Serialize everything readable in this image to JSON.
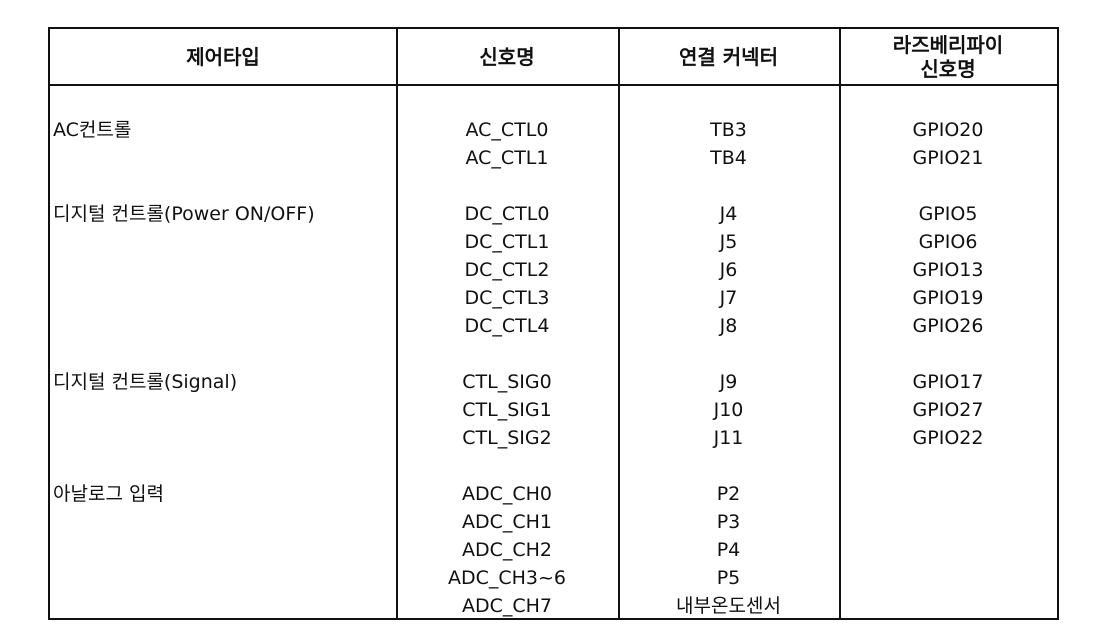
{
  "table": {
    "headers": {
      "type": "제어타입",
      "signal": "신호명",
      "connector": "연결 커넥터",
      "rpi_line1": "라즈베리파이",
      "rpi_line2": "신호명"
    },
    "groups": [
      {
        "type": "AC컨트롤",
        "rows": [
          {
            "signal": "AC_CTL0",
            "connector": "TB3",
            "gpio": "GPIO20"
          },
          {
            "signal": "AC_CTL1",
            "connector": "TB4",
            "gpio": "GPIO21"
          }
        ]
      },
      {
        "type": "디지털 컨트롤(Power ON/OFF)",
        "rows": [
          {
            "signal": "DC_CTL0",
            "connector": "J4",
            "gpio": "GPIO5"
          },
          {
            "signal": "DC_CTL1",
            "connector": "J5",
            "gpio": "GPIO6"
          },
          {
            "signal": "DC_CTL2",
            "connector": "J6",
            "gpio": "GPIO13"
          },
          {
            "signal": "DC_CTL3",
            "connector": "J7",
            "gpio": "GPIO19"
          },
          {
            "signal": "DC_CTL4",
            "connector": "J8",
            "gpio": "GPIO26"
          }
        ]
      },
      {
        "type": "디지털 컨트롤(Signal)",
        "rows": [
          {
            "signal": "CTL_SIG0",
            "connector": "J9",
            "gpio": "GPIO17"
          },
          {
            "signal": "CTL_SIG1",
            "connector": "J10",
            "gpio": "GPIO27"
          },
          {
            "signal": "CTL_SIG2",
            "connector": "J11",
            "gpio": "GPIO22"
          }
        ]
      },
      {
        "type": "아날로그 입력",
        "rows": [
          {
            "signal": "ADC_CH0",
            "connector": "P2",
            "gpio": ""
          },
          {
            "signal": "ADC_CH1",
            "connector": "P3",
            "gpio": ""
          },
          {
            "signal": "ADC_CH2",
            "connector": "P4",
            "gpio": ""
          },
          {
            "signal": "ADC_CH3~6",
            "connector": "P5",
            "gpio": ""
          },
          {
            "signal": "ADC_CH7",
            "connector": "내부온도센서",
            "gpio": ""
          }
        ]
      }
    ]
  }
}
